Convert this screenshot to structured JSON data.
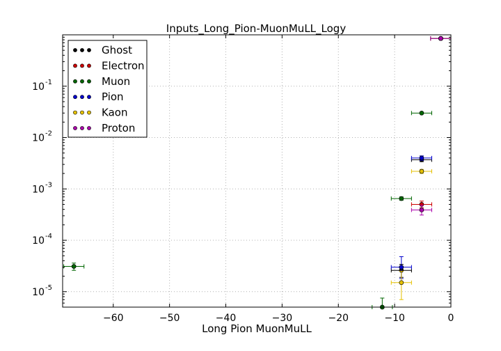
{
  "chart_data": {
    "type": "scatter",
    "title": "Inputs_Long_Pion-MuonMuLL_Logy",
    "xlabel": "Long Pion MuonMuLL",
    "ylabel": "",
    "xlim": [
      -69,
      0
    ],
    "ylim": [
      5e-06,
      1
    ],
    "yscale": "log",
    "grid": true,
    "legend_position": "top-left",
    "x_ticks": [
      -60,
      -50,
      -40,
      -30,
      -20,
      -10,
      0
    ],
    "x_tick_labels": [
      "−60",
      "−50",
      "−40",
      "−30",
      "−20",
      "−10",
      "0"
    ],
    "y_ticks": [
      1e-05,
      0.0001,
      0.001,
      0.01,
      0.1
    ],
    "y_tick_labels": [
      {
        "base": "10",
        "exp": "-5"
      },
      {
        "base": "10",
        "exp": "-4"
      },
      {
        "base": "10",
        "exp": "-3"
      },
      {
        "base": "10",
        "exp": "-2"
      },
      {
        "base": "10",
        "exp": "-1"
      }
    ],
    "series": [
      {
        "name": "Ghost",
        "color": "#000000",
        "points": [
          {
            "x": -8.8,
            "xerr": 1.8,
            "y": 2.6e-05,
            "ylo": 1.9e-05,
            "yhi": 3.4e-05
          },
          {
            "x": -5.2,
            "xerr": 1.8,
            "y": 0.0037,
            "ylo": 0.0034,
            "yhi": 0.004
          },
          {
            "x": -1.8,
            "xerr": 1.8,
            "y": 0.85,
            "ylo": 0.84,
            "yhi": 0.86
          }
        ]
      },
      {
        "name": "Electron",
        "color": "#cc0000",
        "points": [
          {
            "x": -5.2,
            "xerr": 1.8,
            "y": 0.0005,
            "ylo": 0.00043,
            "yhi": 0.00058
          },
          {
            "x": -1.8,
            "xerr": 1.8,
            "y": 0.85,
            "ylo": 0.84,
            "yhi": 0.86
          }
        ]
      },
      {
        "name": "Muon",
        "color": "#006600",
        "points": [
          {
            "x": -67.0,
            "xerr": 1.8,
            "y": 3.1e-05,
            "ylo": 2.6e-05,
            "yhi": 3.6e-05
          },
          {
            "x": -12.2,
            "xerr": 1.8,
            "y": 5e-06,
            "ylo": 3.5e-06,
            "yhi": 7.5e-06
          },
          {
            "x": -8.8,
            "xerr": 1.8,
            "y": 0.00065,
            "ylo": 0.0006,
            "yhi": 0.0007
          },
          {
            "x": -5.2,
            "xerr": 1.8,
            "y": 0.03,
            "ylo": 0.029,
            "yhi": 0.031
          },
          {
            "x": -1.8,
            "xerr": 1.8,
            "y": 0.85,
            "ylo": 0.84,
            "yhi": 0.86
          }
        ]
      },
      {
        "name": "Pion",
        "color": "#0000cc",
        "points": [
          {
            "x": -8.8,
            "xerr": 1.8,
            "y": 3e-05,
            "ylo": 1.8e-05,
            "yhi": 4.8e-05
          },
          {
            "x": -5.2,
            "xerr": 1.8,
            "y": 0.004,
            "ylo": 0.0036,
            "yhi": 0.0044
          },
          {
            "x": -1.8,
            "xerr": 1.8,
            "y": 0.85,
            "ylo": 0.84,
            "yhi": 0.86
          }
        ]
      },
      {
        "name": "Kaon",
        "color": "#e6c200",
        "points": [
          {
            "x": -8.8,
            "xerr": 1.8,
            "y": 1.5e-05,
            "ylo": 7e-06,
            "yhi": 2.5e-05
          },
          {
            "x": -5.2,
            "xerr": 1.8,
            "y": 0.0022,
            "ylo": 0.002,
            "yhi": 0.0024
          },
          {
            "x": -1.8,
            "xerr": 1.8,
            "y": 0.85,
            "ylo": 0.84,
            "yhi": 0.86
          }
        ]
      },
      {
        "name": "Proton",
        "color": "#aa00aa",
        "points": [
          {
            "x": -5.2,
            "xerr": 1.8,
            "y": 0.00039,
            "ylo": 0.00031,
            "yhi": 0.00048
          },
          {
            "x": -1.8,
            "xerr": 1.8,
            "y": 0.85,
            "ylo": 0.84,
            "yhi": 0.86
          }
        ]
      }
    ]
  }
}
